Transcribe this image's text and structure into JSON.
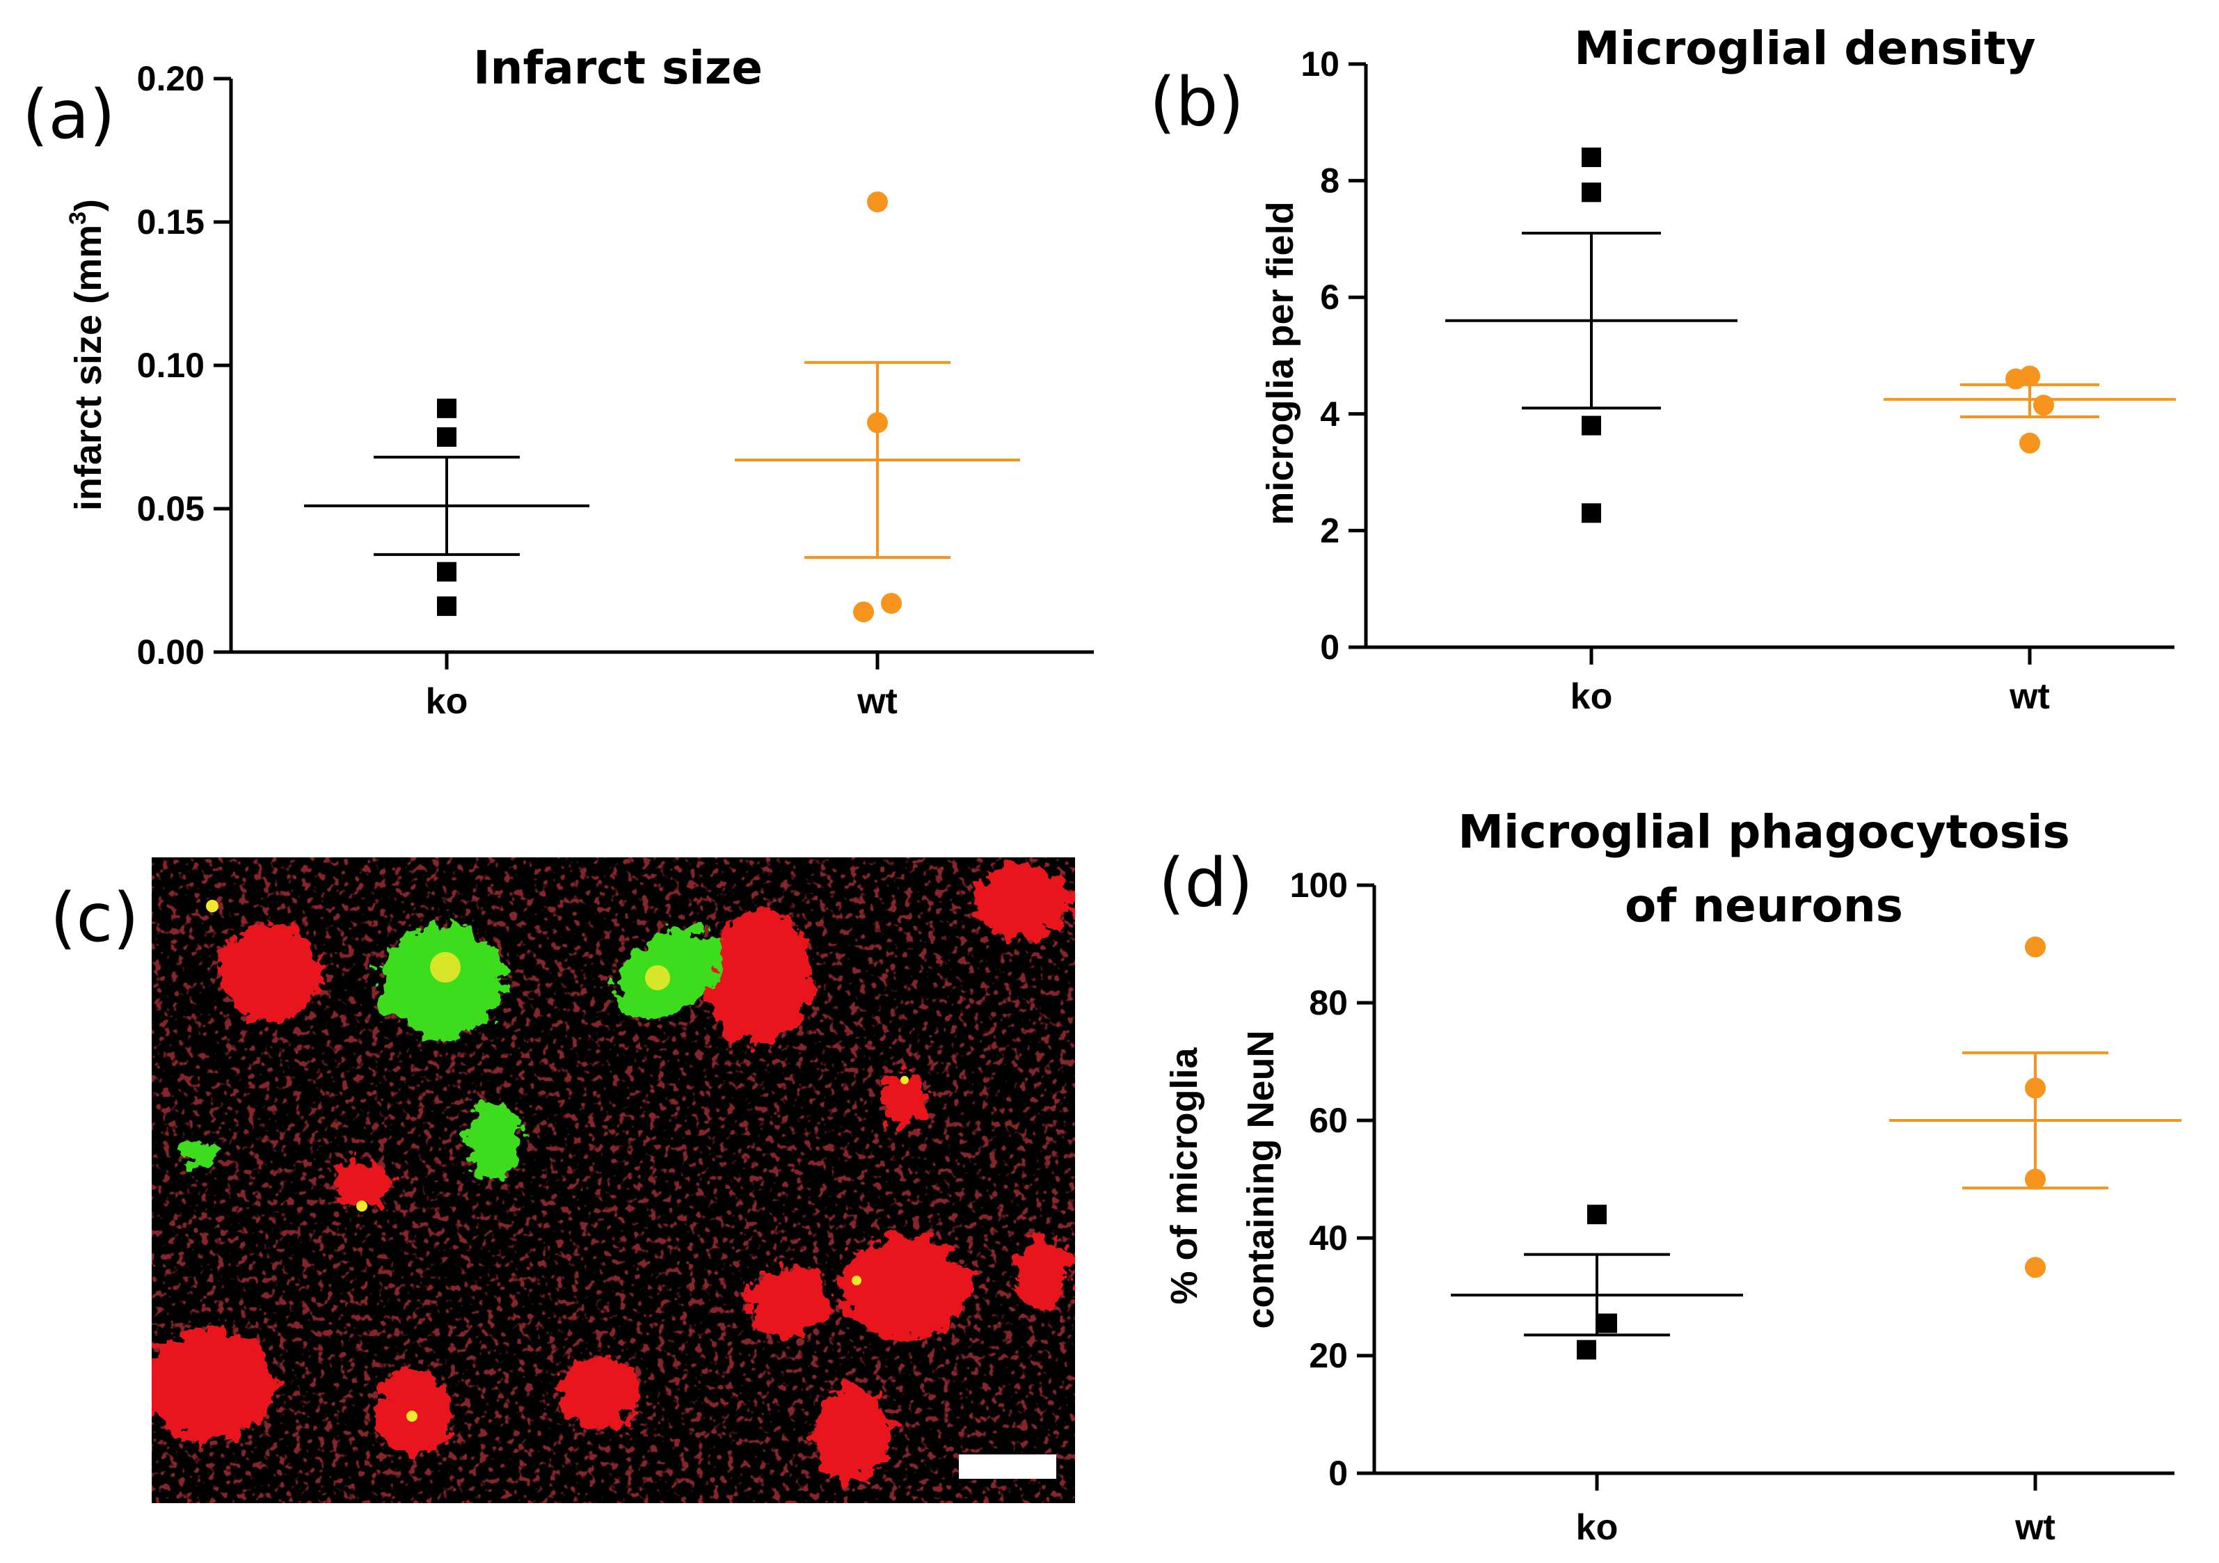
{
  "colors": {
    "ko": "#000000",
    "wt": "#F7941D",
    "red_stain": "#E8141C",
    "green_stain": "#3CDC1E"
  },
  "chart_data": [
    {
      "id": "a",
      "panel_label": "(a)",
      "type": "scatter",
      "title": "Infarct size",
      "xlabel": "",
      "ylabel": "infarct size (mm",
      "ylabel_superscript": "3",
      "ylabel_close": ")",
      "ylim": [
        0,
        0.2
      ],
      "yticks": [
        "0.00",
        "0.05",
        "0.10",
        "0.15",
        "0.20"
      ],
      "categories": [
        "ko",
        "wt"
      ],
      "series": [
        {
          "name": "ko",
          "color": "#000000",
          "marker": "square",
          "points": [
            0.085,
            0.075,
            0.028,
            0.016
          ],
          "mean": 0.051,
          "sem_low": 0.034,
          "sem_high": 0.068
        },
        {
          "name": "wt",
          "color": "#F7941D",
          "marker": "circle",
          "points": [
            0.157,
            0.08,
            0.017,
            0.014
          ],
          "mean": 0.067,
          "sem_low": 0.033,
          "sem_high": 0.101
        }
      ]
    },
    {
      "id": "b",
      "panel_label": "(b)",
      "type": "scatter",
      "title": "Microglial density",
      "xlabel": "",
      "ylabel": "microglia per field",
      "ylim": [
        0,
        10
      ],
      "yticks": [
        "0",
        "2",
        "4",
        "6",
        "8",
        "10"
      ],
      "categories": [
        "ko",
        "wt"
      ],
      "series": [
        {
          "name": "ko",
          "color": "#000000",
          "marker": "square",
          "points": [
            8.4,
            7.8,
            3.8,
            2.3
          ],
          "mean": 5.6,
          "sem_low": 4.1,
          "sem_high": 7.1
        },
        {
          "name": "wt",
          "color": "#F7941D",
          "marker": "circle",
          "points": [
            4.65,
            4.6,
            4.15,
            3.5
          ],
          "mean": 4.25,
          "sem_low": 3.95,
          "sem_high": 4.5
        }
      ]
    },
    {
      "id": "d",
      "panel_label": "(d)",
      "type": "scatter",
      "title": "Microglial phagocytosis",
      "title_line2": "of neurons",
      "xlabel": "",
      "ylabel": "% of microglia",
      "ylabel_line2": "containing NeuN",
      "ylim": [
        0,
        100
      ],
      "yticks": [
        "0",
        "20",
        "40",
        "60",
        "80",
        "100"
      ],
      "categories": [
        "ko",
        "wt"
      ],
      "series": [
        {
          "name": "ko",
          "color": "#000000",
          "marker": "square",
          "points": [
            44,
            25.5,
            21
          ],
          "mean": 30.3,
          "sem_low": 23.5,
          "sem_high": 37.2
        },
        {
          "name": "wt",
          "color": "#F7941D",
          "marker": "circle",
          "points": [
            89.5,
            65.5,
            50,
            35
          ],
          "mean": 60,
          "sem_low": 48.5,
          "sem_high": 71.5
        }
      ]
    }
  ],
  "micrograph": {
    "panel_label": "(c)",
    "description_name": "fluorescence micrograph"
  }
}
